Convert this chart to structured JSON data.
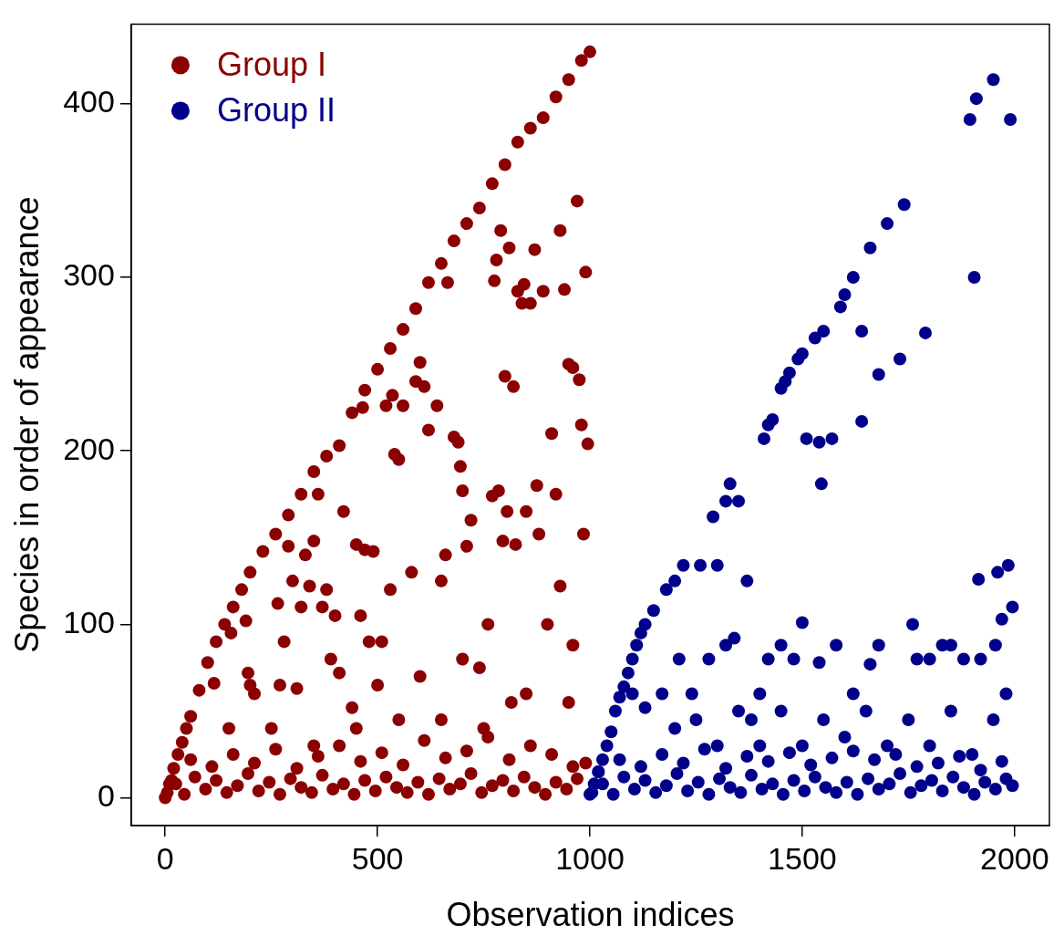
{
  "chart_data": {
    "type": "scatter",
    "xlabel": "Observation indices",
    "ylabel": "Species in order of appearance",
    "xlim": [
      -80,
      2082
    ],
    "ylim": [
      -16,
      446
    ],
    "xticks": [
      0,
      500,
      1000,
      1500,
      2000
    ],
    "yticks": [
      0,
      100,
      200,
      300,
      400
    ],
    "grid": false,
    "legend": "top left",
    "marker": "circle",
    "series": [
      {
        "name": "Group I",
        "color": "#8b0000",
        "x": [
          0,
          10,
          20,
          30,
          40,
          50,
          60,
          80,
          100,
          120,
          140,
          160,
          180,
          200,
          230,
          260,
          290,
          320,
          350,
          380,
          410,
          440,
          470,
          500,
          530,
          560,
          590,
          620,
          650,
          680,
          710,
          740,
          770,
          800,
          830,
          860,
          890,
          920,
          950,
          980,
          1000,
          115,
          155,
          190,
          195,
          200,
          210,
          265,
          270,
          280,
          290,
          300,
          310,
          320,
          330,
          340,
          350,
          360,
          370,
          380,
          390,
          400,
          410,
          420,
          440,
          450,
          460,
          465,
          470,
          480,
          490,
          510,
          520,
          530,
          535,
          540,
          550,
          560,
          580,
          590,
          600,
          610,
          620,
          640,
          650,
          660,
          665,
          680,
          690,
          695,
          700,
          710,
          720,
          740,
          760,
          770,
          775,
          780,
          785,
          790,
          795,
          800,
          805,
          810,
          815,
          820,
          825,
          830,
          840,
          845,
          850,
          860,
          870,
          875,
          880,
          890,
          900,
          910,
          920,
          930,
          940,
          950,
          960,
          970,
          975,
          980,
          985,
          990,
          995,
          960,
          930,
          150,
          250,
          350,
          450,
          550,
          650,
          750,
          850,
          950,
          500,
          600,
          700,
          5,
          25,
          45,
          70,
          95,
          120,
          145,
          170,
          195,
          220,
          245,
          270,
          295,
          320,
          345,
          370,
          395,
          420,
          445,
          470,
          495,
          520,
          545,
          570,
          595,
          620,
          645,
          670,
          695,
          720,
          745,
          770,
          795,
          820,
          845,
          870,
          895,
          920,
          945,
          970,
          990,
          15,
          60,
          110,
          160,
          210,
          260,
          310,
          360,
          410,
          460,
          510,
          560,
          610,
          660,
          710,
          760,
          810,
          860,
          910,
          960
        ],
        "values": [
          0,
          8,
          17,
          25,
          32,
          40,
          47,
          62,
          78,
          90,
          100,
          110,
          120,
          130,
          142,
          152,
          163,
          175,
          188,
          197,
          203,
          222,
          235,
          247,
          259,
          270,
          282,
          297,
          308,
          321,
          331,
          340,
          354,
          365,
          378,
          386,
          392,
          404,
          414,
          425,
          430,
          66,
          95,
          102,
          72,
          65,
          60,
          112,
          65,
          90,
          145,
          125,
          63,
          110,
          140,
          122,
          148,
          175,
          110,
          120,
          80,
          105,
          72,
          165,
          52,
          146,
          105,
          225,
          143,
          90,
          142,
          90,
          226,
          120,
          232,
          198,
          195,
          226,
          130,
          240,
          251,
          237,
          212,
          226,
          125,
          140,
          297,
          208,
          205,
          191,
          177,
          145,
          160,
          75,
          100,
          174,
          298,
          310,
          177,
          327,
          148,
          243,
          165,
          317,
          55,
          237,
          146,
          292,
          285,
          296,
          165,
          285,
          316,
          180,
          152,
          292,
          100,
          210,
          175,
          327,
          293,
          250,
          248,
          344,
          241,
          215,
          152,
          303,
          204,
          88,
          122,
          40,
          40,
          30,
          40,
          45,
          45,
          40,
          60,
          55,
          65,
          70,
          80,
          3,
          8,
          2,
          12,
          5,
          10,
          3,
          7,
          14,
          4,
          9,
          2,
          11,
          6,
          3,
          13,
          5,
          8,
          2,
          10,
          4,
          12,
          6,
          3,
          9,
          2,
          11,
          5,
          8,
          14,
          3,
          7,
          10,
          4,
          12,
          6,
          2,
          9,
          5,
          11,
          20,
          10,
          22,
          18,
          25,
          20,
          28,
          17,
          24,
          30,
          21,
          26,
          19,
          33,
          23,
          27,
          35,
          22,
          30,
          25,
          18
        ]
      },
      {
        "name": "Group II",
        "color": "#00008b",
        "x": [
          1000,
          1010,
          1020,
          1030,
          1040,
          1050,
          1060,
          1070,
          1080,
          1090,
          1100,
          1110,
          1120,
          1130,
          1150,
          1180,
          1200,
          1220,
          1260,
          1290,
          1300,
          1320,
          1330,
          1350,
          1370,
          1410,
          1420,
          1430,
          1450,
          1460,
          1470,
          1490,
          1500,
          1510,
          1530,
          1540,
          1545,
          1550,
          1570,
          1590,
          1600,
          1620,
          1640,
          1640,
          1660,
          1680,
          1700,
          1730,
          1740,
          1790,
          1895,
          1910,
          1950,
          1990,
          1905,
          1915,
          1960,
          1985,
          1995,
          1970,
          1955,
          1920,
          1880,
          1850,
          1830,
          1800,
          1770,
          1760,
          1680,
          1660,
          1620,
          1580,
          1540,
          1500,
          1480,
          1450,
          1420,
          1400,
          1380,
          1340,
          1320,
          1280,
          1240,
          1210,
          1170,
          1130,
          1100,
          1300,
          1400,
          1500,
          1600,
          1700,
          1800,
          1900,
          1950,
          1980,
          1200,
          1250,
          1350,
          1450,
          1550,
          1650,
          1750,
          1850,
          1005,
          1030,
          1055,
          1080,
          1105,
          1130,
          1155,
          1180,
          1205,
          1230,
          1255,
          1280,
          1305,
          1330,
          1355,
          1380,
          1405,
          1430,
          1455,
          1480,
          1505,
          1530,
          1555,
          1580,
          1605,
          1630,
          1655,
          1680,
          1705,
          1730,
          1755,
          1780,
          1805,
          1830,
          1855,
          1880,
          1905,
          1930,
          1955,
          1980,
          1995,
          1020,
          1070,
          1120,
          1170,
          1220,
          1270,
          1320,
          1370,
          1420,
          1470,
          1520,
          1570,
          1620,
          1670,
          1720,
          1770,
          1820,
          1870,
          1920,
          1970
        ],
        "values": [
          2,
          8,
          15,
          22,
          30,
          38,
          50,
          58,
          64,
          72,
          80,
          88,
          95,
          100,
          108,
          120,
          125,
          134,
          134,
          162,
          134,
          171,
          181,
          171,
          125,
          207,
          215,
          218,
          236,
          240,
          245,
          253,
          256,
          207,
          265,
          205,
          181,
          269,
          207,
          283,
          290,
          300,
          269,
          217,
          317,
          244,
          331,
          253,
          342,
          268,
          391,
          403,
          414,
          391,
          300,
          126,
          130,
          134,
          110,
          103,
          88,
          80,
          80,
          88,
          88,
          80,
          80,
          100,
          88,
          77,
          60,
          88,
          78,
          101,
          80,
          88,
          80,
          60,
          45,
          92,
          88,
          80,
          60,
          80,
          60,
          52,
          60,
          30,
          30,
          30,
          35,
          30,
          30,
          25,
          45,
          60,
          40,
          45,
          50,
          50,
          45,
          50,
          45,
          50,
          3,
          8,
          2,
          12,
          5,
          10,
          3,
          7,
          14,
          4,
          9,
          2,
          11,
          6,
          3,
          13,
          5,
          8,
          2,
          10,
          4,
          12,
          6,
          3,
          9,
          2,
          11,
          5,
          8,
          14,
          3,
          7,
          10,
          4,
          12,
          6,
          2,
          9,
          5,
          11,
          7,
          15,
          22,
          18,
          25,
          20,
          28,
          17,
          24,
          21,
          26,
          19,
          23,
          27,
          22,
          25,
          18,
          20,
          24,
          16,
          21
        ]
      }
    ]
  }
}
